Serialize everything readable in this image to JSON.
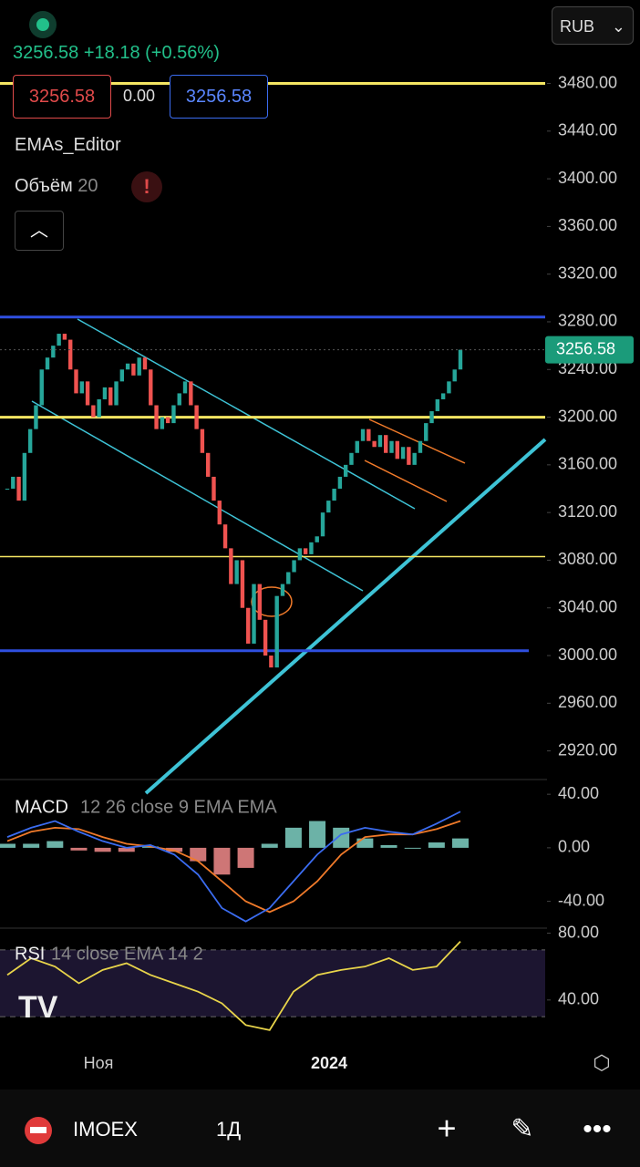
{
  "header": {
    "price": "3256.58",
    "change": "+18.18 (+0.56%)",
    "bid": "3256.58",
    "spread": "0.00",
    "ask": "3256.58",
    "currency": "RUB",
    "indicator1": "EMAs_Editor",
    "volume_label": "Объём",
    "volume_value": "20",
    "alert": "!"
  },
  "toolbar": {
    "symbol": "IMOEX",
    "interval": "1Д"
  },
  "chart_data": {
    "type": "candlestick",
    "closes": [
      3140,
      3150,
      3130,
      3170,
      3190,
      3210,
      3240,
      3250,
      3260,
      3270,
      3265,
      3240,
      3220,
      3230,
      3210,
      3200,
      3215,
      3225,
      3210,
      3230,
      3240,
      3245,
      3235,
      3250,
      3240,
      3210,
      3190,
      3200,
      3195,
      3210,
      3220,
      3230,
      3210,
      3190,
      3170,
      3150,
      3130,
      3110,
      3090,
      3060,
      3080,
      3040,
      3010,
      3060,
      3030,
      3000,
      2990,
      3050,
      3060,
      3070,
      3080,
      3090,
      3085,
      3095,
      3100,
      3120,
      3130,
      3140,
      3150,
      3160,
      3170,
      3180,
      3190,
      3180,
      3175,
      3185,
      3170,
      3180,
      3165,
      3175,
      3160,
      3170,
      3180,
      3195,
      3205,
      3215,
      3220,
      3230,
      3240,
      3256.58
    ],
    "up_color": "#26a69a",
    "down_color": "#ef5350",
    "ylim": [
      2896,
      3550
    ],
    "yticks": [
      {
        "value": 3480,
        "label": "3480.00"
      },
      {
        "value": 3440,
        "label": "3440.00"
      },
      {
        "value": 3400,
        "label": "3400.00"
      },
      {
        "value": 3360,
        "label": "3360.00"
      },
      {
        "value": 3320,
        "label": "3320.00"
      },
      {
        "value": 3280,
        "label": "3280.00"
      },
      {
        "value": 3240,
        "label": "3240.00"
      },
      {
        "value": 3200,
        "label": "3200.00"
      },
      {
        "value": 3160,
        "label": "3160.00"
      },
      {
        "value": 3120,
        "label": "3120.00"
      },
      {
        "value": 3080,
        "label": "3080.00"
      },
      {
        "value": 3040,
        "label": "3040.00"
      },
      {
        "value": 3000,
        "label": "3000.00"
      },
      {
        "value": 2960,
        "label": "2960.00"
      },
      {
        "value": 2920,
        "label": "2920.00"
      }
    ],
    "levels": [
      {
        "value": 3480,
        "color": "#f5e663"
      },
      {
        "value": 3284,
        "color": "#2f4fe0"
      },
      {
        "value": 3200,
        "color": "#f5e663"
      },
      {
        "value": 3083,
        "color": "#f5e663"
      },
      {
        "value": 3004,
        "color": "#2f4fe0"
      }
    ],
    "x_labels": [
      "Ноя",
      "2024"
    ],
    "macd": {
      "title": "MACD",
      "params": "12 26 close 9 EMA EMA",
      "line": [
        8,
        15,
        20,
        12,
        5,
        0,
        2,
        -5,
        -20,
        -45,
        -55,
        -45,
        -25,
        -5,
        10,
        15,
        12,
        10,
        18,
        27
      ],
      "signal": [
        5,
        12,
        15,
        14,
        8,
        3,
        1,
        -2,
        -10,
        -25,
        -40,
        -48,
        -40,
        -25,
        -5,
        8,
        10,
        10,
        14,
        20
      ],
      "histogram": [
        3,
        3,
        5,
        -2,
        -3,
        -3,
        1,
        -3,
        -10,
        -20,
        -15,
        3,
        15,
        20,
        15,
        7,
        2,
        0,
        4,
        7
      ],
      "line_color": "#3b6cf0",
      "signal_color": "#f07a2a",
      "ylim": [
        -60,
        51
      ],
      "yticks": [
        {
          "value": 40,
          "label": "40.00"
        },
        {
          "value": 0,
          "label": "0.00"
        },
        {
          "value": -40,
          "label": "-40.00"
        }
      ]
    },
    "rsi": {
      "title": "RSI",
      "params": "14 close EMA 14 2",
      "values": [
        55,
        65,
        60,
        50,
        58,
        62,
        55,
        50,
        45,
        38,
        25,
        22,
        45,
        55,
        58,
        60,
        65,
        58,
        60,
        75
      ],
      "color": "#e8d44a",
      "band": [
        30,
        70
      ],
      "ylim": [
        11,
        83
      ],
      "yticks": [
        {
          "value": 80,
          "label": "80.00"
        },
        {
          "value": 40,
          "label": "40.00"
        }
      ]
    }
  }
}
